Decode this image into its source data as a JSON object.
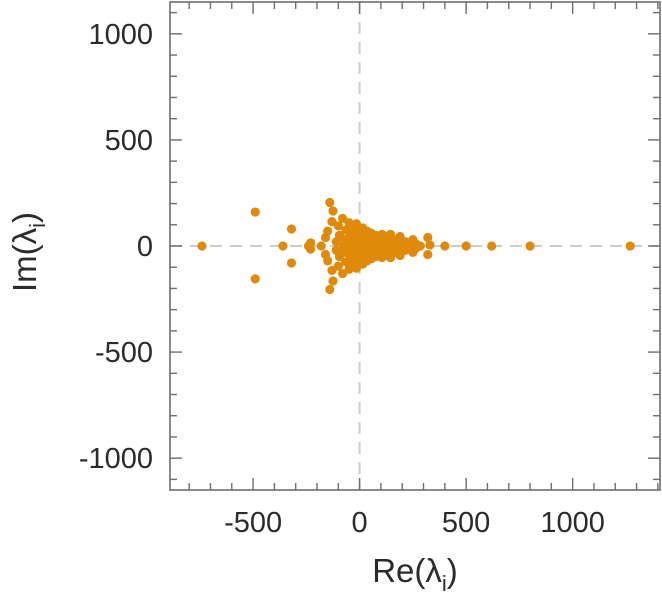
{
  "chart_data": {
    "type": "scatter",
    "title": "",
    "xlabel": "Re(λ",
    "xlabel_sub": "i",
    "xlabel_close": ")",
    "ylabel": "Im(λ",
    "ylabel_sub": "i",
    "ylabel_close": ")",
    "xlim": [
      -890,
      1410
    ],
    "ylim": [
      -1150,
      1150
    ],
    "xticks": [
      -500,
      0,
      500,
      1000
    ],
    "xtick_labels": [
      "-500",
      "0",
      "500",
      "1000"
    ],
    "yticks": [
      -1000,
      -500,
      0,
      500,
      1000
    ],
    "ytick_labels": [
      "-1000",
      "-500",
      "0",
      "500",
      "1000"
    ],
    "grid": false,
    "zero_lines": true,
    "marker_color": "#e08a0b",
    "axis_color": "#6e6e6e",
    "zero_line_color": "#cccccc",
    "series": [
      {
        "points": [
          [
            -740,
            0
          ],
          [
            -490,
            160
          ],
          [
            -490,
            -155
          ],
          [
            -360,
            0
          ],
          [
            -320,
            80
          ],
          [
            -320,
            -80
          ],
          [
            -240,
            0
          ],
          [
            -230,
            15
          ],
          [
            -230,
            -15
          ],
          [
            -140,
            205
          ],
          [
            -140,
            -205
          ],
          [
            -125,
            165
          ],
          [
            -125,
            -165
          ],
          [
            -130,
            115
          ],
          [
            -130,
            -115
          ],
          [
            -180,
            0
          ],
          [
            -160,
            40
          ],
          [
            -160,
            -40
          ],
          [
            -150,
            70
          ],
          [
            -150,
            -70
          ],
          [
            -110,
            20
          ],
          [
            -110,
            -20
          ],
          [
            -100,
            95
          ],
          [
            -100,
            -95
          ],
          [
            -95,
            50
          ],
          [
            -95,
            -50
          ],
          [
            -80,
            130
          ],
          [
            -80,
            -130
          ],
          [
            -75,
            0
          ],
          [
            -70,
            30
          ],
          [
            -70,
            -30
          ],
          [
            -65,
            75
          ],
          [
            -65,
            -75
          ],
          [
            -55,
            15
          ],
          [
            -55,
            -15
          ],
          [
            -50,
            110
          ],
          [
            -50,
            -110
          ],
          [
            -45,
            55
          ],
          [
            -45,
            -55
          ],
          [
            -35,
            90
          ],
          [
            -35,
            -90
          ],
          [
            -30,
            5
          ],
          [
            -25,
            35
          ],
          [
            -25,
            -35
          ],
          [
            -20,
            70
          ],
          [
            -20,
            -70
          ],
          [
            -15,
            105
          ],
          [
            -15,
            -105
          ],
          [
            -10,
            20
          ],
          [
            -10,
            -20
          ],
          [
            -5,
            50
          ],
          [
            -5,
            -50
          ],
          [
            5,
            15
          ],
          [
            5,
            -15
          ],
          [
            10,
            40
          ],
          [
            10,
            -40
          ],
          [
            15,
            85
          ],
          [
            15,
            -85
          ],
          [
            20,
            5
          ],
          [
            25,
            55
          ],
          [
            25,
            -55
          ],
          [
            30,
            25
          ],
          [
            30,
            -25
          ],
          [
            35,
            70
          ],
          [
            35,
            -70
          ],
          [
            40,
            10
          ],
          [
            40,
            -10
          ],
          [
            45,
            45
          ],
          [
            45,
            -45
          ],
          [
            55,
            60
          ],
          [
            55,
            -60
          ],
          [
            60,
            0
          ],
          [
            65,
            30
          ],
          [
            65,
            -30
          ],
          [
            75,
            50
          ],
          [
            75,
            -50
          ],
          [
            80,
            10
          ],
          [
            80,
            -10
          ],
          [
            90,
            35
          ],
          [
            90,
            -35
          ],
          [
            95,
            15
          ],
          [
            95,
            -15
          ],
          [
            105,
            55
          ],
          [
            105,
            -55
          ],
          [
            110,
            25
          ],
          [
            110,
            -25
          ],
          [
            120,
            5
          ],
          [
            125,
            40
          ],
          [
            125,
            -40
          ],
          [
            135,
            20
          ],
          [
            135,
            -20
          ],
          [
            145,
            55
          ],
          [
            145,
            -55
          ],
          [
            150,
            5
          ],
          [
            165,
            30
          ],
          [
            165,
            -30
          ],
          [
            180,
            10
          ],
          [
            180,
            -10
          ],
          [
            190,
            45
          ],
          [
            190,
            -45
          ],
          [
            200,
            0
          ],
          [
            215,
            20
          ],
          [
            215,
            -20
          ],
          [
            235,
            5
          ],
          [
            250,
            30
          ],
          [
            250,
            -30
          ],
          [
            265,
            10
          ],
          [
            265,
            -10
          ],
          [
            285,
            0
          ],
          [
            320,
            40
          ],
          [
            320,
            -40
          ],
          [
            330,
            5
          ],
          [
            400,
            0
          ],
          [
            500,
            0
          ],
          [
            620,
            0
          ],
          [
            800,
            0
          ],
          [
            1270,
            0
          ]
        ]
      }
    ]
  }
}
